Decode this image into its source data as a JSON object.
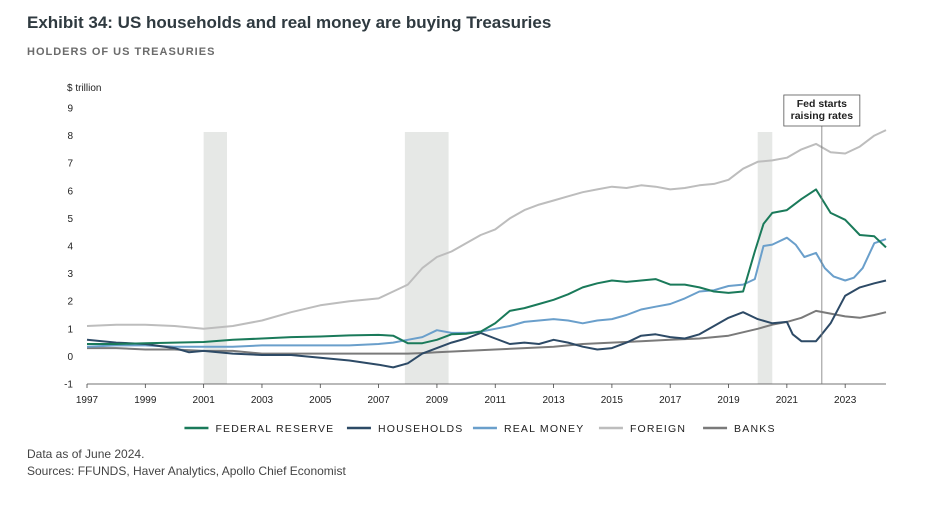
{
  "header": {
    "title": "Exhibit 34: US households and real money are buying Treasuries",
    "subtitle": "HOLDERS OF US TREASURIES"
  },
  "footer": {
    "note": "Data as of June 2024.",
    "sources": "Sources: FFUNDS, Haver Analytics, Apollo Chief Economist"
  },
  "chart_data": {
    "type": "line",
    "title": "HOLDERS OF US TREASURIES",
    "ylabel": "$ trillion",
    "xlabel": "",
    "xlim": [
      1997,
      2024.4
    ],
    "ylim": [
      -1,
      9
    ],
    "yticks": [
      -1,
      0,
      1,
      2,
      3,
      4,
      5,
      6,
      7,
      8,
      9
    ],
    "xticks": [
      1997,
      1999,
      2001,
      2003,
      2005,
      2007,
      2009,
      2011,
      2013,
      2015,
      2017,
      2019,
      2021,
      2023
    ],
    "grid": false,
    "legend_position": "bottom",
    "shaded_periods": [
      [
        2001.0,
        2001.8
      ],
      [
        2007.9,
        2009.4
      ],
      [
        2020.0,
        2020.5
      ]
    ],
    "annotation": {
      "text_lines": [
        "Fed starts",
        "raising rates"
      ],
      "x": 2022.2
    },
    "series": [
      {
        "name": "FEDERAL RESERVE",
        "color": "#1a7a5a",
        "x": [
          1997,
          1998,
          1999,
          2000,
          2001,
          2002,
          2003,
          2004,
          2005,
          2006,
          2007,
          2007.5,
          2008,
          2008.5,
          2009,
          2009.5,
          2010,
          2010.5,
          2011,
          2011.5,
          2012,
          2012.5,
          2013,
          2013.5,
          2014,
          2014.5,
          2015,
          2015.5,
          2016,
          2016.5,
          2017,
          2017.5,
          2018,
          2018.5,
          2019,
          2019.5,
          2019.9,
          2020.2,
          2020.5,
          2021,
          2021.5,
          2022,
          2022.5,
          2023,
          2023.5,
          2024,
          2024.4
        ],
        "values": [
          0.45,
          0.45,
          0.48,
          0.5,
          0.52,
          0.6,
          0.65,
          0.7,
          0.72,
          0.76,
          0.78,
          0.75,
          0.48,
          0.48,
          0.6,
          0.8,
          0.82,
          0.9,
          1.2,
          1.65,
          1.75,
          1.9,
          2.05,
          2.25,
          2.5,
          2.65,
          2.75,
          2.7,
          2.75,
          2.8,
          2.6,
          2.6,
          2.5,
          2.35,
          2.3,
          2.35,
          3.8,
          4.8,
          5.2,
          5.3,
          5.7,
          6.05,
          5.2,
          4.95,
          4.4,
          4.35,
          3.95
        ]
      },
      {
        "name": "HOUSEHOLDS",
        "color": "#2d4a66",
        "x": [
          1997,
          1998,
          1999,
          2000,
          2000.5,
          2001,
          2002,
          2003,
          2004,
          2005,
          2006,
          2007,
          2007.5,
          2008,
          2008.5,
          2009,
          2009.5,
          2010,
          2010.5,
          2011,
          2011.5,
          2012,
          2012.5,
          2013,
          2013.5,
          2014,
          2014.5,
          2015,
          2015.5,
          2016,
          2016.5,
          2017,
          2017.5,
          2018,
          2018.5,
          2019,
          2019.5,
          2020,
          2020.5,
          2021,
          2021.2,
          2021.5,
          2022,
          2022.2,
          2022.5,
          2023,
          2023.5,
          2024,
          2024.4
        ],
        "values": [
          0.6,
          0.5,
          0.45,
          0.3,
          0.15,
          0.2,
          0.1,
          0.05,
          0.05,
          -0.05,
          -0.15,
          -0.3,
          -0.4,
          -0.25,
          0.1,
          0.3,
          0.5,
          0.65,
          0.85,
          0.65,
          0.45,
          0.5,
          0.45,
          0.6,
          0.5,
          0.35,
          0.25,
          0.3,
          0.5,
          0.75,
          0.8,
          0.7,
          0.65,
          0.8,
          1.1,
          1.4,
          1.6,
          1.35,
          1.2,
          1.25,
          0.8,
          0.55,
          0.55,
          0.8,
          1.2,
          2.2,
          2.5,
          2.65,
          2.75
        ]
      },
      {
        "name": "REAL MONEY",
        "color": "#6a9fcb",
        "x": [
          1997,
          1998,
          1999,
          2000,
          2001,
          2002,
          2003,
          2004,
          2005,
          2006,
          2007,
          2007.5,
          2008,
          2008.5,
          2009,
          2009.5,
          2010,
          2010.5,
          2011,
          2011.5,
          2012,
          2012.5,
          2013,
          2013.5,
          2014,
          2014.5,
          2015,
          2015.5,
          2016,
          2016.5,
          2017,
          2017.5,
          2018,
          2018.5,
          2019,
          2019.5,
          2019.9,
          2020.2,
          2020.5,
          2021,
          2021.3,
          2021.6,
          2022,
          2022.3,
          2022.6,
          2023,
          2023.3,
          2023.6,
          2024,
          2024.4
        ],
        "values": [
          0.35,
          0.4,
          0.4,
          0.35,
          0.35,
          0.35,
          0.4,
          0.4,
          0.4,
          0.4,
          0.45,
          0.5,
          0.6,
          0.7,
          0.95,
          0.85,
          0.85,
          0.9,
          1.0,
          1.1,
          1.25,
          1.3,
          1.35,
          1.3,
          1.2,
          1.3,
          1.35,
          1.5,
          1.7,
          1.8,
          1.9,
          2.1,
          2.35,
          2.4,
          2.55,
          2.6,
          2.8,
          4.0,
          4.05,
          4.3,
          4.05,
          3.6,
          3.75,
          3.2,
          2.9,
          2.75,
          2.85,
          3.2,
          4.1,
          4.25
        ]
      },
      {
        "name": "FOREIGN",
        "color": "#bdbdbd",
        "x": [
          1997,
          1998,
          1999,
          2000,
          2001,
          2002,
          2003,
          2004,
          2005,
          2006,
          2007,
          2007.5,
          2008,
          2008.5,
          2009,
          2009.5,
          2010,
          2010.5,
          2011,
          2011.5,
          2012,
          2012.5,
          2013,
          2013.5,
          2014,
          2014.5,
          2015,
          2015.5,
          2016,
          2016.5,
          2017,
          2017.5,
          2018,
          2018.5,
          2019,
          2019.5,
          2020,
          2020.5,
          2021,
          2021.5,
          2022,
          2022.5,
          2023,
          2023.5,
          2024,
          2024.4
        ],
        "values": [
          1.1,
          1.15,
          1.15,
          1.1,
          1.0,
          1.1,
          1.3,
          1.6,
          1.85,
          2.0,
          2.1,
          2.35,
          2.6,
          3.2,
          3.6,
          3.8,
          4.1,
          4.4,
          4.6,
          5.0,
          5.3,
          5.5,
          5.65,
          5.8,
          5.95,
          6.05,
          6.15,
          6.1,
          6.2,
          6.15,
          6.05,
          6.1,
          6.2,
          6.25,
          6.4,
          6.8,
          7.05,
          7.1,
          7.2,
          7.5,
          7.7,
          7.4,
          7.35,
          7.6,
          8.0,
          8.2
        ]
      },
      {
        "name": "BANKS",
        "color": "#7a7a7a",
        "x": [
          1997,
          1998,
          1999,
          2000,
          2001,
          2002,
          2003,
          2004,
          2005,
          2006,
          2007,
          2008,
          2008.5,
          2009,
          2010,
          2011,
          2012,
          2013,
          2014,
          2015,
          2016,
          2017,
          2018,
          2019,
          2020,
          2020.5,
          2021,
          2021.5,
          2022,
          2022.5,
          2023,
          2023.5,
          2024,
          2024.4
        ],
        "values": [
          0.3,
          0.3,
          0.25,
          0.25,
          0.2,
          0.2,
          0.1,
          0.1,
          0.1,
          0.1,
          0.1,
          0.1,
          0.12,
          0.15,
          0.2,
          0.25,
          0.3,
          0.35,
          0.45,
          0.5,
          0.55,
          0.6,
          0.65,
          0.75,
          1.0,
          1.15,
          1.25,
          1.4,
          1.65,
          1.55,
          1.45,
          1.4,
          1.5,
          1.6
        ]
      }
    ]
  }
}
